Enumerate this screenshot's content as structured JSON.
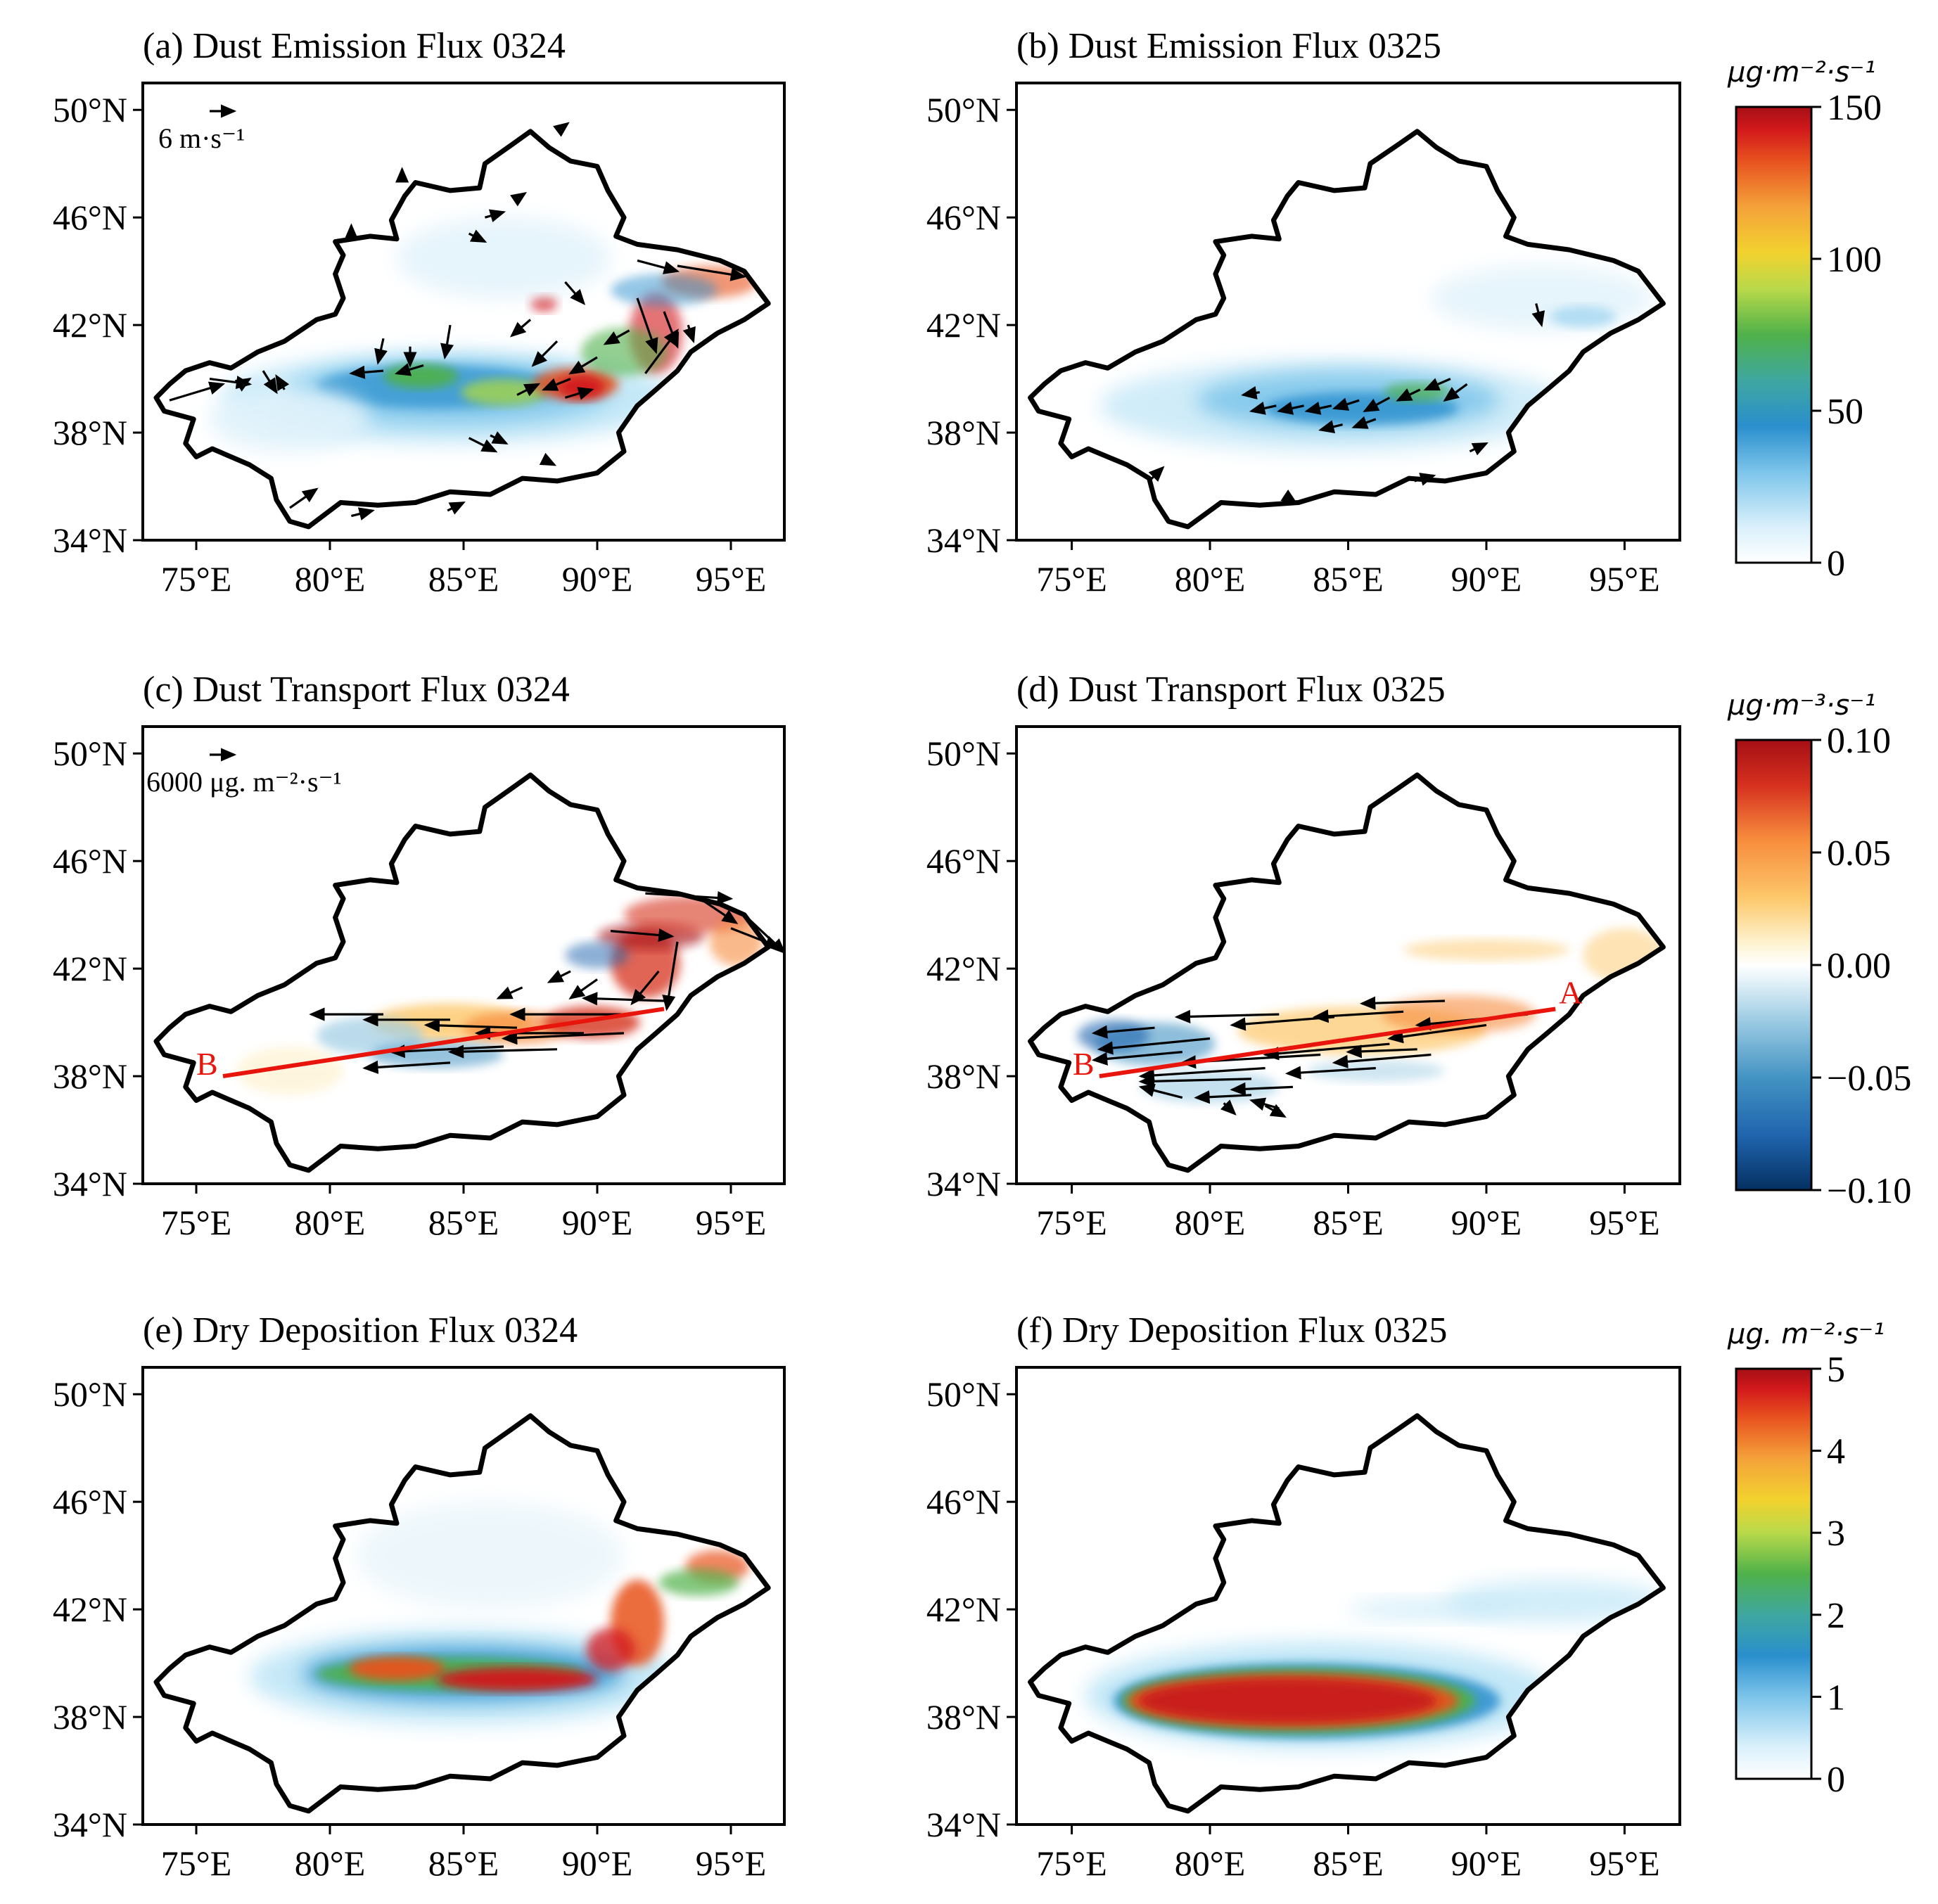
{
  "panels": [
    {
      "key": "a",
      "title": "(a) Dust Emission Flux 0324",
      "ref_vector_label": "6 m·s⁻¹",
      "colormap": "emission",
      "line_markers": []
    },
    {
      "key": "b",
      "title": "(b) Dust Emission Flux 0325",
      "ref_vector_label": "",
      "colormap": "emission",
      "line_markers": []
    },
    {
      "key": "c",
      "title": "(c) Dust Transport Flux 0324",
      "ref_vector_label": "6000 μg. m⁻²·s⁻¹",
      "colormap": "transport",
      "line_markers": [
        "B"
      ]
    },
    {
      "key": "d",
      "title": "(d) Dust Transport Flux 0325",
      "ref_vector_label": "",
      "colormap": "transport",
      "line_markers": [
        "A",
        "B"
      ]
    },
    {
      "key": "e",
      "title": "(e) Dry Deposition Flux 0324",
      "ref_vector_label": "",
      "colormap": "deposition",
      "line_markers": []
    },
    {
      "key": "f",
      "title": "(f) Dry Deposition Flux 0325",
      "ref_vector_label": "",
      "colormap": "deposition",
      "line_markers": []
    }
  ],
  "axes": {
    "lat_ticks": [
      "34°N",
      "38°N",
      "42°N",
      "46°N",
      "50°N"
    ],
    "lon_ticks": [
      "75°E",
      "80°E",
      "85°E",
      "90°E",
      "95°E"
    ],
    "lat_values": [
      34,
      38,
      42,
      46,
      50
    ],
    "lon_values": [
      75,
      80,
      85,
      90,
      95
    ],
    "lat_range": [
      34,
      51
    ],
    "lon_range": [
      73,
      97
    ]
  },
  "colorbars": [
    {
      "unit": "μg·m⁻²·s⁻¹",
      "ticks": [
        "150",
        "100",
        "50",
        "0"
      ],
      "colors": [
        "#ffffff",
        "#bfe6f7",
        "#62b6e6",
        "#2a8fcd",
        "#4fb14a",
        "#a7d64a",
        "#f2d22e",
        "#f4a23a",
        "#e8531f",
        "#d3191c",
        "#a50f15"
      ]
    },
    {
      "unit": "μg·m⁻³·s⁻¹",
      "ticks": [
        "0.10",
        "0.05",
        "0.00",
        "−0.05",
        "−0.10"
      ],
      "colors": [
        "#053061",
        "#1f64ad",
        "#4393c3",
        "#9fcde4",
        "#e3f1f8",
        "#ffffff",
        "#fdf0c8",
        "#fdc76a",
        "#f78b3c",
        "#d6301f",
        "#a50f15"
      ]
    },
    {
      "unit": "μg. m⁻²·s⁻¹",
      "ticks": [
        "5",
        "4",
        "3",
        "2",
        "1",
        "0"
      ],
      "colors": [
        "#ffffff",
        "#bfe6f7",
        "#62b6e6",
        "#2a8fcd",
        "#4fb14a",
        "#a7d64a",
        "#f2d22e",
        "#f4a23a",
        "#e8531f",
        "#d3191c",
        "#a50f15"
      ]
    }
  ],
  "section_line": {
    "A": [
      92.5,
      40.5
    ],
    "B": [
      76,
      38
    ]
  }
}
